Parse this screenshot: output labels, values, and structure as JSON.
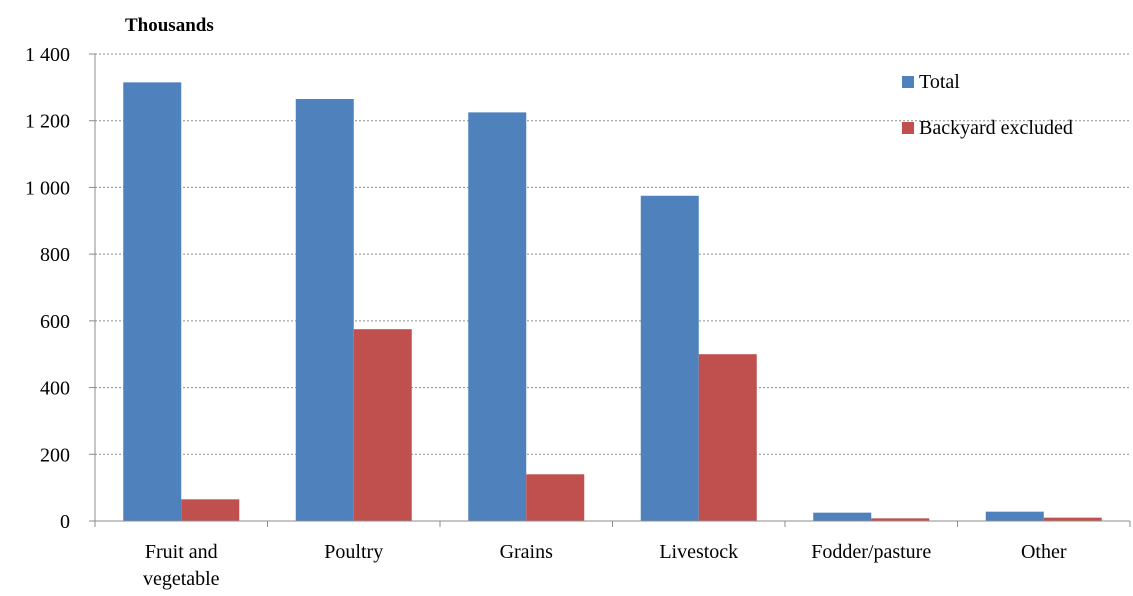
{
  "chart_data": {
    "type": "bar",
    "unit_label": "Thousands",
    "categories": [
      [
        "Fruit and",
        "vegetable"
      ],
      [
        "Poultry"
      ],
      [
        "Grains"
      ],
      [
        "Livestock"
      ],
      [
        "Fodder/pasture"
      ],
      [
        "Other"
      ]
    ],
    "series": [
      {
        "name": "Total",
        "color": "#4F81BD",
        "values": [
          1315,
          1265,
          1225,
          975,
          25,
          28
        ]
      },
      {
        "name": "Backyard excluded",
        "color": "#C0504D",
        "values": [
          65,
          575,
          140,
          500,
          8,
          10
        ]
      }
    ],
    "ylim": [
      0,
      1400
    ],
    "yticks": [
      0,
      200,
      400,
      600,
      800,
      1000,
      1200,
      1400
    ],
    "ytick_labels": [
      "0",
      "200",
      "400",
      "600",
      "800",
      "1 000",
      "1 200",
      "1 400"
    ],
    "grid": true,
    "legend_position": "top-right"
  }
}
